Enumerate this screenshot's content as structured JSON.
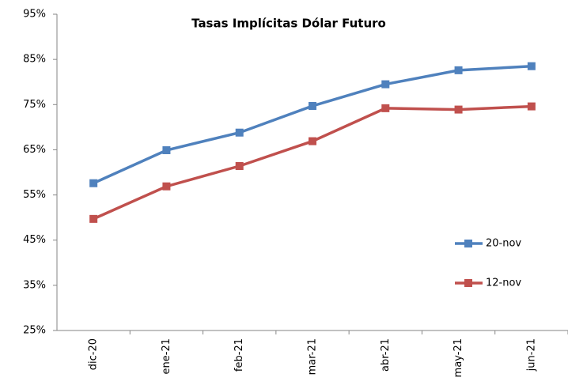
{
  "chart_data": {
    "type": "line",
    "title": "Tasas Implícitas Dólar Futuro",
    "categories": [
      "dic-20",
      "ene-21",
      "feb-21",
      "mar-21",
      "abr-21",
      "may-21",
      "jun-21"
    ],
    "series": [
      {
        "name": "20-nov",
        "color": "#4f81bd",
        "values": [
          57.6,
          64.9,
          68.8,
          74.7,
          79.5,
          82.6,
          83.5
        ]
      },
      {
        "name": "12-nov",
        "color": "#c0504d",
        "values": [
          49.7,
          56.9,
          61.4,
          66.9,
          74.2,
          73.9,
          74.6
        ]
      }
    ],
    "ylim": [
      25,
      95
    ],
    "yticks": [
      {
        "value": 25,
        "label": "25%"
      },
      {
        "value": 35,
        "label": "35%"
      },
      {
        "value": 45,
        "label": "45%"
      },
      {
        "value": 55,
        "label": "55%"
      },
      {
        "value": 65,
        "label": "65%"
      },
      {
        "value": 75,
        "label": "75%"
      },
      {
        "value": 85,
        "label": "85%"
      },
      {
        "value": 95,
        "label": "95%"
      }
    ],
    "grid": false,
    "legend": "right"
  }
}
